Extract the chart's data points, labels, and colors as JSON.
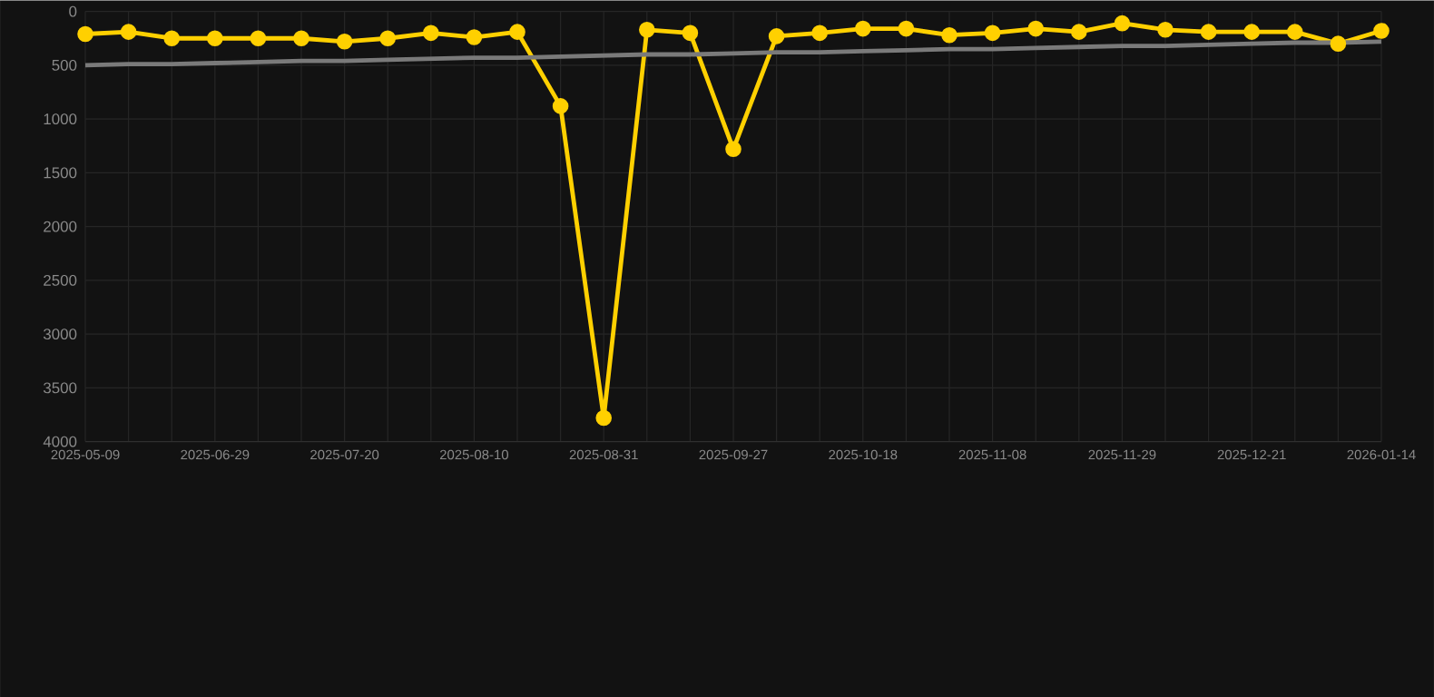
{
  "chart_data": {
    "type": "line",
    "categories": [
      "2025-05-09",
      null,
      null,
      "2025-06-29",
      null,
      null,
      "2025-07-20",
      null,
      null,
      "2025-08-10",
      null,
      null,
      "2025-08-31",
      null,
      null,
      "2025-09-27",
      null,
      null,
      "2025-10-18",
      null,
      null,
      "2025-11-08",
      null,
      null,
      "2025-11-29",
      null,
      null,
      "2025-12-21",
      null,
      null,
      "2026-01-14"
    ],
    "series": [
      {
        "color": "#ffd000",
        "marker": "circle",
        "values": [
          210,
          190,
          250,
          250,
          250,
          250,
          280,
          250,
          200,
          240,
          190,
          880,
          3780,
          170,
          200,
          1280,
          230,
          200,
          160,
          160,
          220,
          200,
          160,
          190,
          110,
          170,
          190,
          190,
          190,
          300,
          180
        ]
      },
      {
        "type": "line",
        "color": "#7a7a7a",
        "marker": "none",
        "values": [
          500,
          490,
          490,
          480,
          470,
          460,
          460,
          450,
          440,
          430,
          430,
          420,
          410,
          400,
          400,
          390,
          380,
          380,
          370,
          360,
          350,
          350,
          340,
          330,
          320,
          320,
          310,
          300,
          290,
          290,
          280
        ]
      }
    ],
    "ylim": [
      4000,
      0
    ],
    "yticks": [
      0,
      500,
      1000,
      1500,
      2000,
      2500,
      3000,
      3500,
      4000
    ],
    "grid": true,
    "line_style": "solid"
  }
}
